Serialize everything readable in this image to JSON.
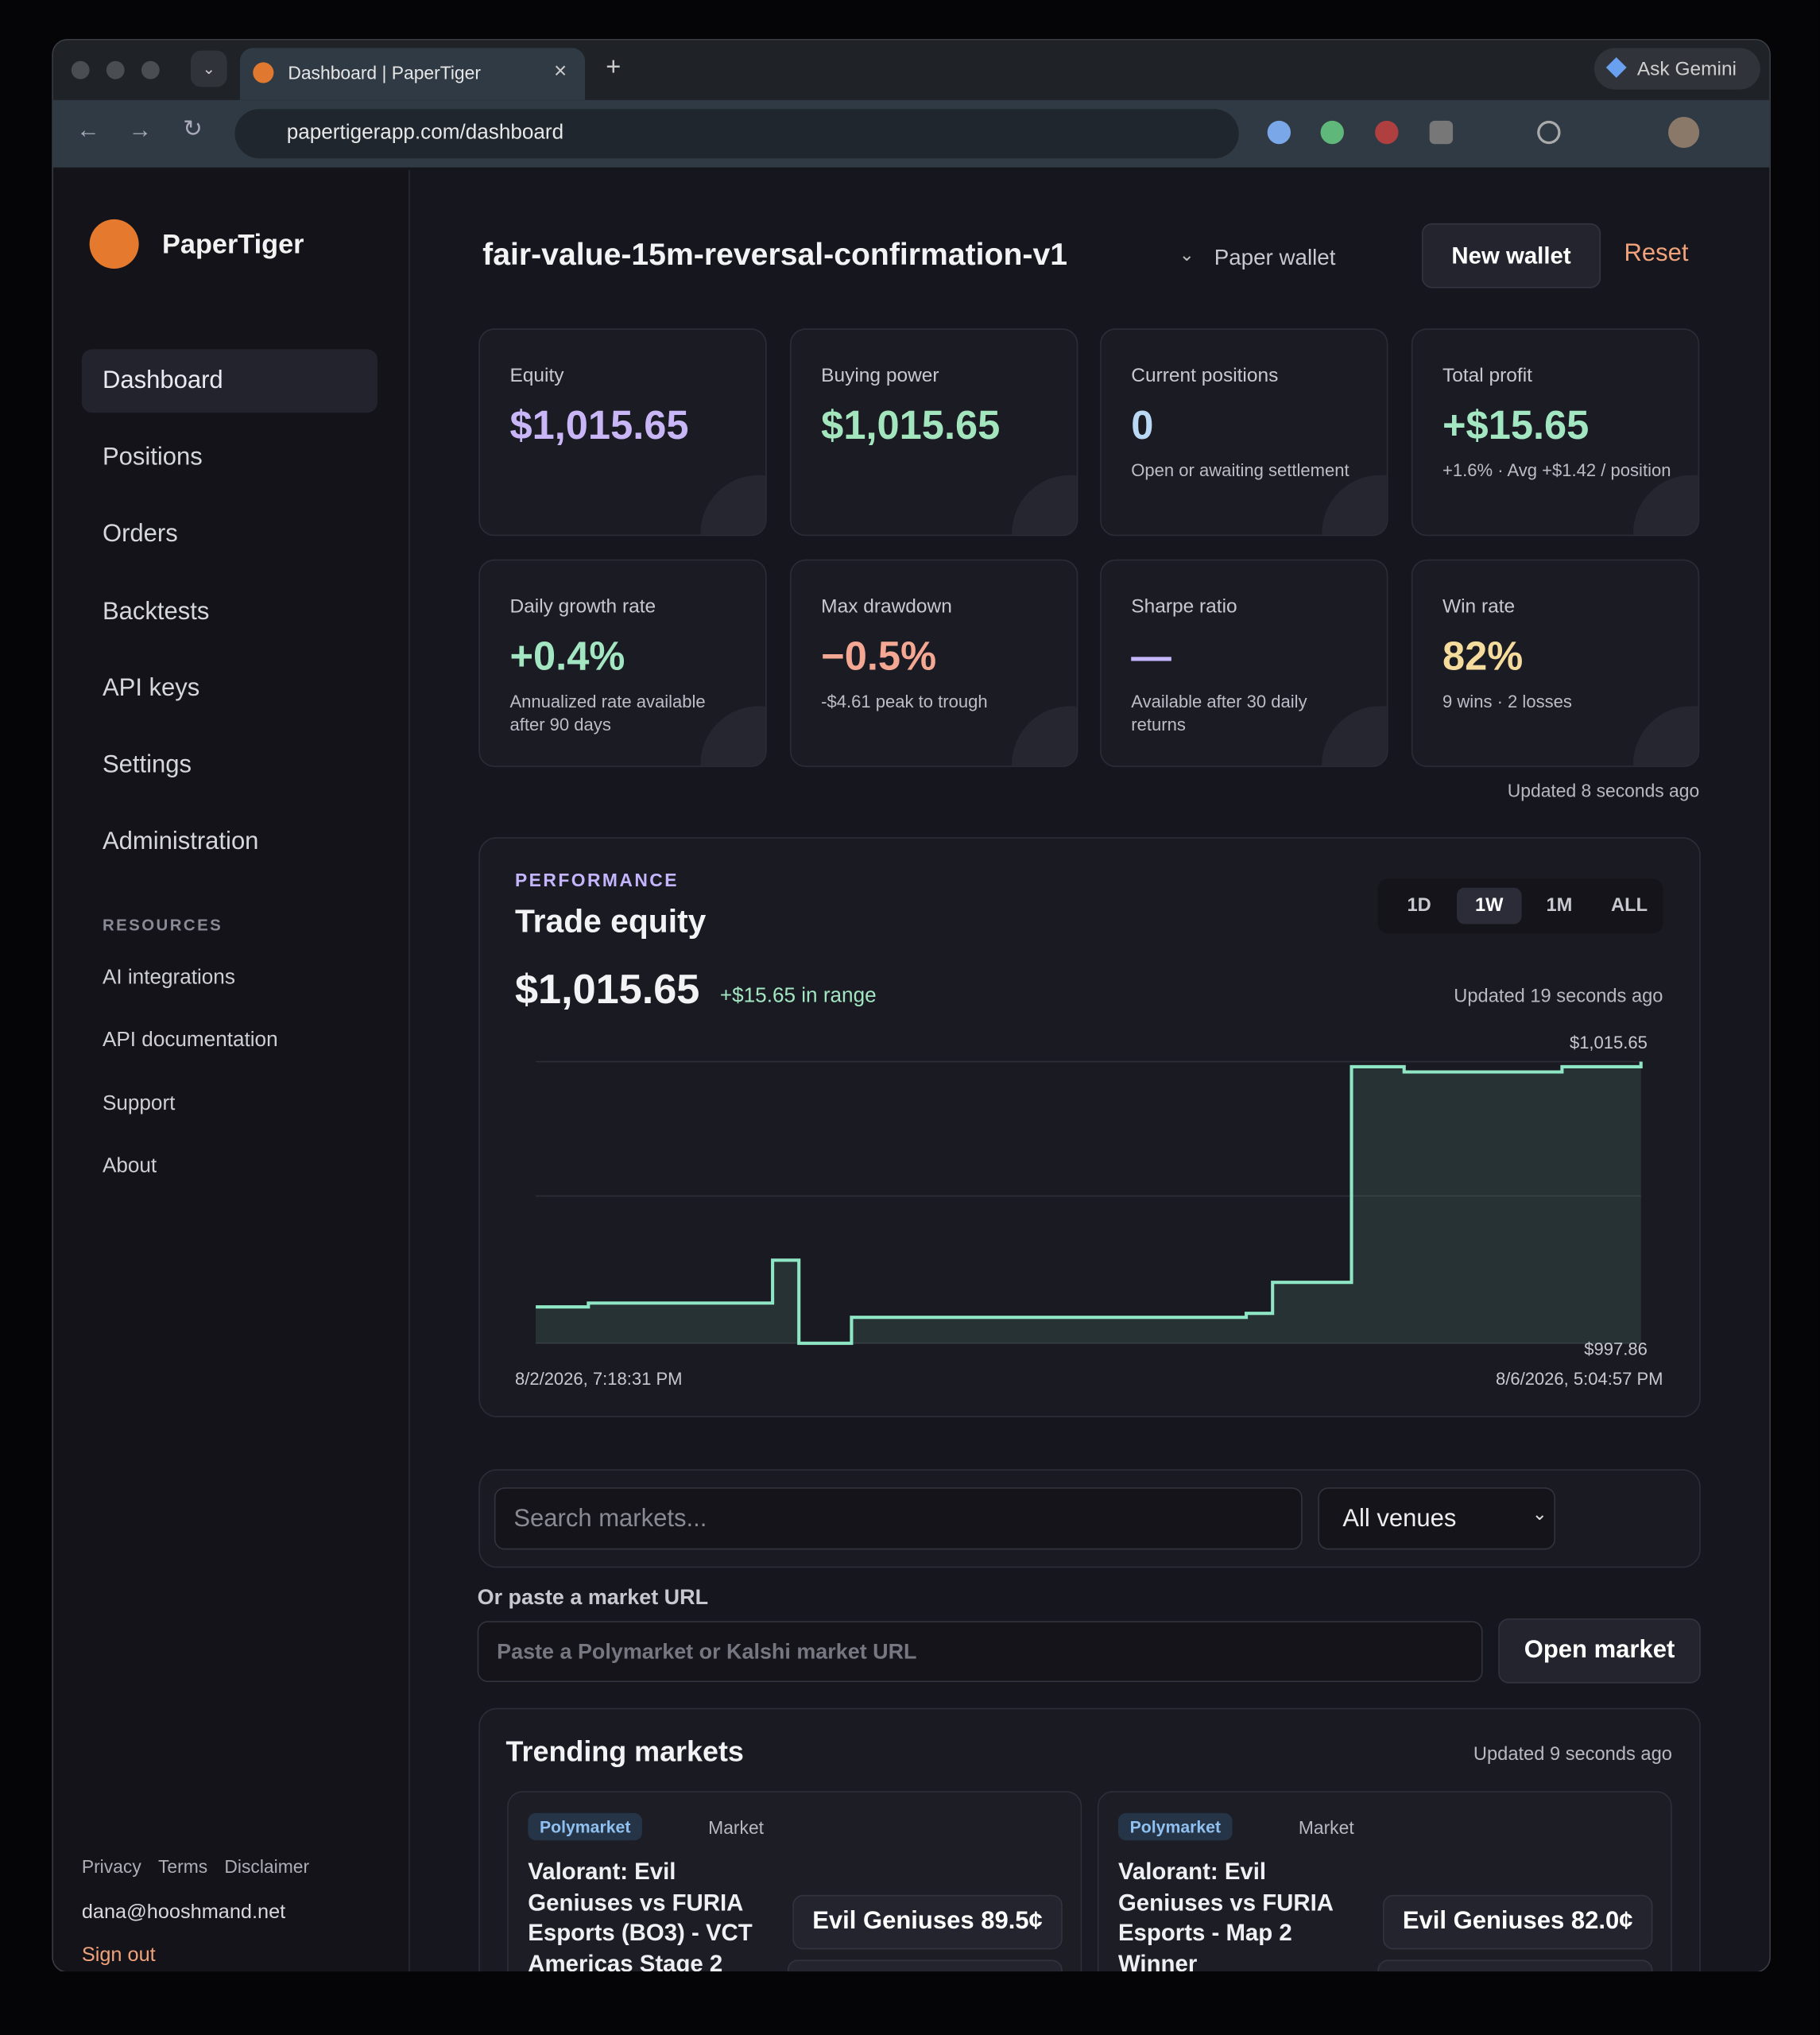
{
  "browser": {
    "tab_title": "Dashboard | PaperTiger",
    "url": "papertigerapp.com/dashboard",
    "assistant": "Ask Gemini"
  },
  "sidebar": {
    "brand": "PaperTiger",
    "nav": [
      "Dashboard",
      "Positions",
      "Orders",
      "Backtests",
      "API keys",
      "Settings",
      "Administration"
    ],
    "active": 0,
    "resources_heading": "RESOURCES",
    "resources": [
      "AI integrations",
      "API documentation",
      "Support",
      "About"
    ],
    "footer_links": [
      "Privacy",
      "Terms",
      "Disclaimer"
    ],
    "email": "dana@hooshmand.net",
    "sign_out": "Sign out"
  },
  "header": {
    "title": "fair-value-15m-reversal-confirmation-v1",
    "wallet": "Paper wallet",
    "new_wallet": "New wallet",
    "reset": "Reset"
  },
  "stats": [
    {
      "label": "Equity",
      "value": "$1,015.65",
      "color": "#c9b6f7"
    },
    {
      "label": "Buying power",
      "value": "$1,015.65",
      "color": "#a3e6bd"
    },
    {
      "label": "Current positions",
      "value": "0",
      "sub": "Open or awaiting settlement",
      "color": "#b9d9f5"
    },
    {
      "label": "Total profit",
      "value": "+$15.65",
      "sub": "+1.6% · Avg +$1.42 / position",
      "color": "#a3e6c2"
    },
    {
      "label": "Daily growth rate",
      "value": "+0.4%",
      "sub": "Annualized rate available after 90 days",
      "color": "#a3e6c2"
    },
    {
      "label": "Max drawdown",
      "value": "−0.5%",
      "sub": "-$4.61 peak to trough",
      "color": "#f4a894"
    },
    {
      "label": "Sharpe ratio",
      "value": "—",
      "sub": "Available after 30 daily returns",
      "color": "#c4b5fd"
    },
    {
      "label": "Win rate",
      "value": "82%",
      "sub": "9 wins · 2 losses",
      "color": "#f5dc9c"
    }
  ],
  "stats_updated": "Updated 8 seconds ago",
  "chart_data": {
    "type": "line",
    "kicker": "PERFORMANCE",
    "title": "Trade equity",
    "headline": "$1,015.65",
    "change": "+$15.65 in range",
    "updated": "Updated 19 seconds ago",
    "ranges": [
      "1D",
      "1W",
      "1M",
      "ALL"
    ],
    "active_range": 1,
    "xlabels": [
      "8/2/2026, 7:18:31 PM",
      "8/6/2026, 5:04:57 PM"
    ],
    "values": [
      1000.16,
      1000.16,
      1000.4,
      1000.4,
      1000.4,
      1000.4,
      1000.4,
      1000.4,
      1000.4,
      1003.11,
      997.86,
      997.86,
      999.5,
      999.5,
      999.5,
      999.5,
      999.5,
      999.5,
      999.5,
      999.5,
      999.5,
      999.5,
      999.5,
      999.5,
      999.5,
      999.5,
      999.5,
      999.75,
      1001.71,
      1001.71,
      1001.71,
      1015.33,
      1015.33,
      1015.0,
      1015.0,
      1015.0,
      1015.0,
      1015.0,
      1015.0,
      1015.33,
      1015.33,
      1015.33,
      1015.65
    ],
    "color": "#8ee6c4",
    "ylim": [
      997.86,
      1016.47
    ],
    "yticks": [
      {
        "value": 1015.65,
        "label": "$1,015.65"
      },
      {
        "value": 997.86,
        "label": "$997.86"
      }
    ],
    "grid": true
  },
  "search": {
    "placeholder": "Search markets...",
    "venue": "All venues",
    "paste_label": "Or paste a market URL",
    "url_placeholder": "Paste a Polymarket or Kalshi market URL",
    "open": "Open market"
  },
  "trending": {
    "title": "Trending markets",
    "updated": "Updated 9 seconds ago",
    "markets": [
      {
        "venue": "Polymarket",
        "kind": "Market",
        "title": "Valorant: Evil Geniuses vs FURIA Esports (BO3) - VCT Americas Stage 2",
        "outcome": "Evil Geniuses 89.5¢"
      },
      {
        "venue": "Polymarket",
        "kind": "Market",
        "title": "Valorant: Evil Geniuses vs FURIA Esports - Map 2 Winner",
        "outcome": "Evil Geniuses 82.0¢"
      }
    ]
  }
}
